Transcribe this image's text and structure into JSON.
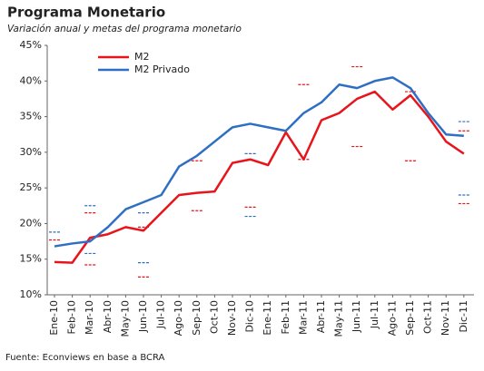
{
  "chart_data": {
    "type": "line",
    "title": "Programa Monetario",
    "subtitle": "Variación anual y metas del programa monetario",
    "source": "Fuente: Econviews en base a BCRA",
    "categories": [
      "Ene-10",
      "Feb-10",
      "Mar-10",
      "Abr-10",
      "May-10",
      "Jun-10",
      "Jul-10",
      "Ago-10",
      "Sep-10",
      "Oct-10",
      "Nov-10",
      "Dic-10",
      "Ene-11",
      "Feb-11",
      "Mar-11",
      "Abr-11",
      "May-11",
      "Jun-11",
      "Jul-11",
      "Ago-11",
      "Sep-11",
      "Oct-11",
      "Nov-11",
      "Dic-11"
    ],
    "series": [
      {
        "name": "M2",
        "color": "#e8141c",
        "values": [
          14.6,
          14.5,
          18.0,
          18.5,
          19.5,
          19.0,
          21.5,
          24.0,
          24.3,
          24.5,
          28.5,
          29.0,
          28.2,
          32.8,
          29.0,
          34.5,
          35.5,
          37.5,
          38.5,
          36.0,
          38.0,
          35.0,
          31.5,
          29.8
        ]
      },
      {
        "name": "M2 Privado",
        "color": "#2e6fc4",
        "values": [
          16.8,
          17.2,
          17.5,
          19.5,
          22.0,
          23.0,
          24.0,
          28.0,
          29.5,
          31.5,
          33.5,
          34.0,
          33.5,
          33.0,
          35.5,
          37.0,
          39.5,
          39.0,
          40.0,
          40.5,
          39.0,
          35.5,
          32.5,
          32.3
        ]
      }
    ],
    "targets": [
      {
        "color": "#e8141c",
        "upper": [
          17.7,
          null,
          21.5,
          null,
          null,
          19.5,
          null,
          null,
          28.8,
          null,
          null,
          29.8,
          null,
          null,
          39.5,
          null,
          null,
          42.0,
          null,
          null,
          38.5,
          null,
          null,
          33.0
        ],
        "lower": [
          null,
          null,
          14.2,
          null,
          null,
          12.5,
          null,
          null,
          21.8,
          null,
          null,
          22.3,
          null,
          null,
          29.0,
          null,
          null,
          30.8,
          null,
          null,
          28.8,
          null,
          null,
          22.8
        ]
      },
      {
        "color": "#2e6fc4",
        "upper": [
          18.8,
          null,
          22.5,
          null,
          null,
          21.5,
          null,
          null,
          null,
          null,
          null,
          29.8,
          null,
          null,
          null,
          null,
          null,
          null,
          null,
          null,
          null,
          null,
          null,
          34.3
        ],
        "lower": [
          null,
          null,
          15.8,
          null,
          null,
          14.5,
          null,
          null,
          null,
          null,
          null,
          21.0,
          null,
          null,
          null,
          null,
          null,
          null,
          null,
          null,
          null,
          null,
          null,
          24.0
        ]
      }
    ],
    "ylim": [
      10,
      45
    ],
    "yticks": [
      {
        "value": 10,
        "label": "10%"
      },
      {
        "value": 15,
        "label": "15%"
      },
      {
        "value": 20,
        "label": "20%"
      },
      {
        "value": 25,
        "label": "25%"
      },
      {
        "value": 30,
        "label": "30%"
      },
      {
        "value": 35,
        "label": "35%"
      },
      {
        "value": 40,
        "label": "40%"
      },
      {
        "value": 45,
        "label": "45%"
      }
    ],
    "grid": false,
    "legend": "upper-left"
  }
}
